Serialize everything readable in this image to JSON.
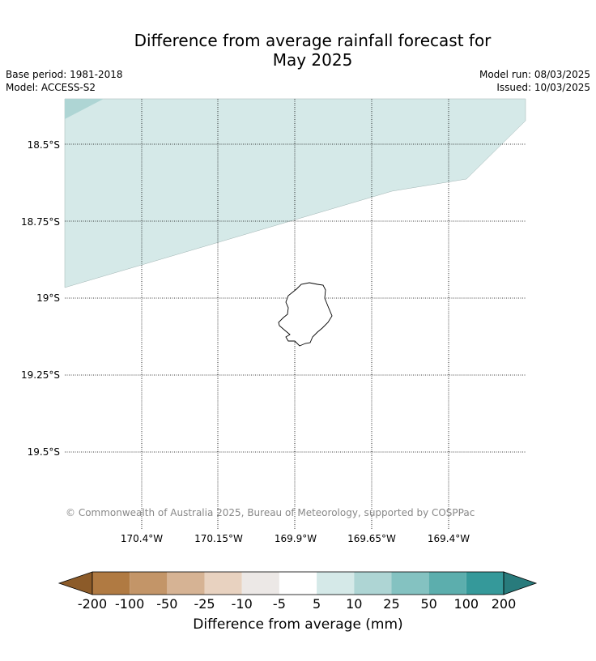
{
  "title_line1": "Difference from average rainfall forecast for",
  "title_line2": "May 2025",
  "base_period": "Base period: 1981-2018",
  "model": "Model: ACCESS-S2",
  "model_run": "Model run: 08/03/2025",
  "issued": "Issued: 10/03/2025",
  "copyright": "© Commonwealth of Australia 2025, Bureau of Meteorology, supported by COSPPac",
  "map": {
    "lon_labels": [
      "170.4°W",
      "170.15°W",
      "169.9°W",
      "169.65°W",
      "169.4°W"
    ],
    "lat_labels": [
      "18.5°S",
      "18.75°S",
      "19°S",
      "19.25°S",
      "19.5°S"
    ],
    "land_name_icon": "island-outline-icon"
  },
  "colorbar": {
    "title": "Difference from average (mm)",
    "tick_labels": [
      "-200",
      "-100",
      "-50",
      "-25",
      "-10",
      "-5",
      "5",
      "10",
      "25",
      "50",
      "100",
      "200"
    ],
    "colors": [
      "#8c5b29",
      "#b07a42",
      "#c39568",
      "#d6b394",
      "#e8d2c0",
      "#ece8e6",
      "#ffffff",
      "#d5e9e8",
      "#aed5d4",
      "#84c2c1",
      "#5caead",
      "#35999a",
      "#287b7c"
    ]
  },
  "fill_colors": {
    "light_teal": "#d5e9e8",
    "medium_teal": "#aed5d4"
  }
}
